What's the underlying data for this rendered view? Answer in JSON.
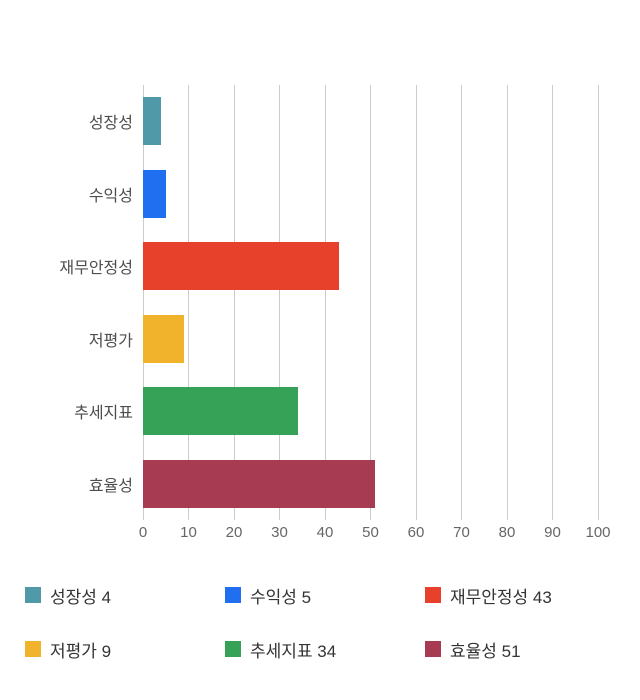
{
  "chart_data": {
    "type": "bar",
    "orientation": "horizontal",
    "title": "",
    "xlabel": "",
    "ylabel": "",
    "categories": [
      "성장성",
      "수익성",
      "재무안정성",
      "저평가",
      "추세지표",
      "효율성"
    ],
    "values": [
      4,
      5,
      43,
      9,
      34,
      51
    ],
    "colors": [
      "#4f99a8",
      "#1f6ff0",
      "#e7412c",
      "#f2b32c",
      "#35a257",
      "#a73b51"
    ],
    "xlim": [
      0,
      100
    ],
    "x_ticks": [
      0,
      10,
      20,
      30,
      40,
      50,
      60,
      70,
      80,
      90,
      100
    ],
    "grid": true,
    "grid_color": "#cccccc",
    "legend_position": "bottom",
    "legend_labels": [
      "성장성 4",
      "수익성 5",
      "재무안정성 43",
      "저평가 9",
      "추세지표 34",
      "효율성 51"
    ]
  }
}
